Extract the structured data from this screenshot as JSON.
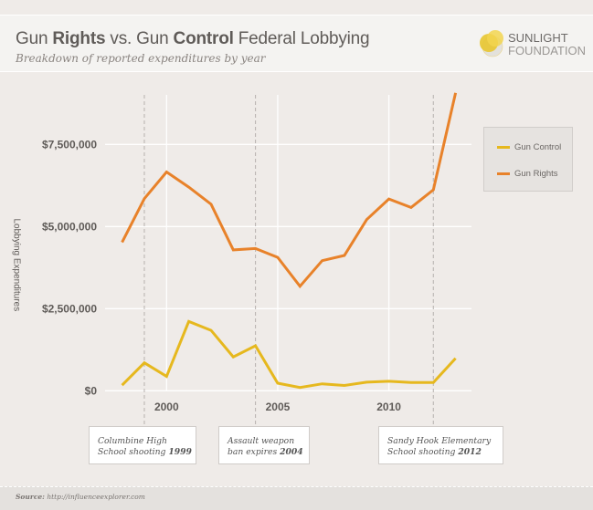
{
  "header": {
    "title_parts": [
      "Gun ",
      "Rights",
      " vs. Gun ",
      "Control",
      " Federal Lobbying"
    ],
    "subtitle": "Breakdown of reported expenditures by year",
    "logo": {
      "line1": "SUNLIGHT",
      "line2": "FOUNDATION"
    }
  },
  "footer": {
    "source_label": "Source:",
    "source_url": "http://influenceexplorer.com"
  },
  "colors": {
    "gun_control": "#e6b81e",
    "gun_rights": "#e8822a",
    "background": "#efebe8",
    "header": "#f4f3f1"
  },
  "chart_data": {
    "type": "line",
    "title": "Gun Rights vs. Gun Control Federal Lobbying",
    "subtitle": "Breakdown of reported expenditures by year",
    "xlabel": "",
    "ylabel": "Lobbying Expenditures",
    "x": [
      1998,
      1999,
      2000,
      2001,
      2002,
      2003,
      2004,
      2005,
      2006,
      2007,
      2008,
      2009,
      2010,
      2011,
      2012,
      2013
    ],
    "x_ticks": [
      "2000",
      "2005",
      "2010"
    ],
    "x_tick_values": [
      2000,
      2005,
      2010
    ],
    "y_ticks": [
      "$0",
      "$2,500,000",
      "$5,000,000",
      "$7,500,000"
    ],
    "y_tick_values": [
      0,
      2500000,
      5000000,
      7500000
    ],
    "ylim": [
      0,
      9000000
    ],
    "grid": true,
    "legend_position": "right",
    "series": [
      {
        "name": "Gun Control",
        "color": "#e6b81e",
        "values": [
          170000,
          850000,
          440000,
          2110000,
          1840000,
          1030000,
          1370000,
          230000,
          100000,
          210000,
          160000,
          260000,
          290000,
          250000,
          250000,
          990000
        ]
      },
      {
        "name": "Gun Rights",
        "color": "#e8822a",
        "values": [
          4520000,
          5850000,
          6660000,
          6200000,
          5680000,
          4290000,
          4330000,
          4060000,
          3180000,
          3960000,
          4120000,
          5210000,
          5840000,
          5580000,
          6120000,
          9070000
        ]
      }
    ],
    "annotations": [
      {
        "year": 1999,
        "text": "Columbine High School shooting ",
        "year_label": "1999"
      },
      {
        "year": 2004,
        "text": "Assault weapon ban expires ",
        "year_label": "2004"
      },
      {
        "year": 2012,
        "text": "Sandy Hook Elementary School shooting ",
        "year_label": "2012"
      }
    ]
  }
}
